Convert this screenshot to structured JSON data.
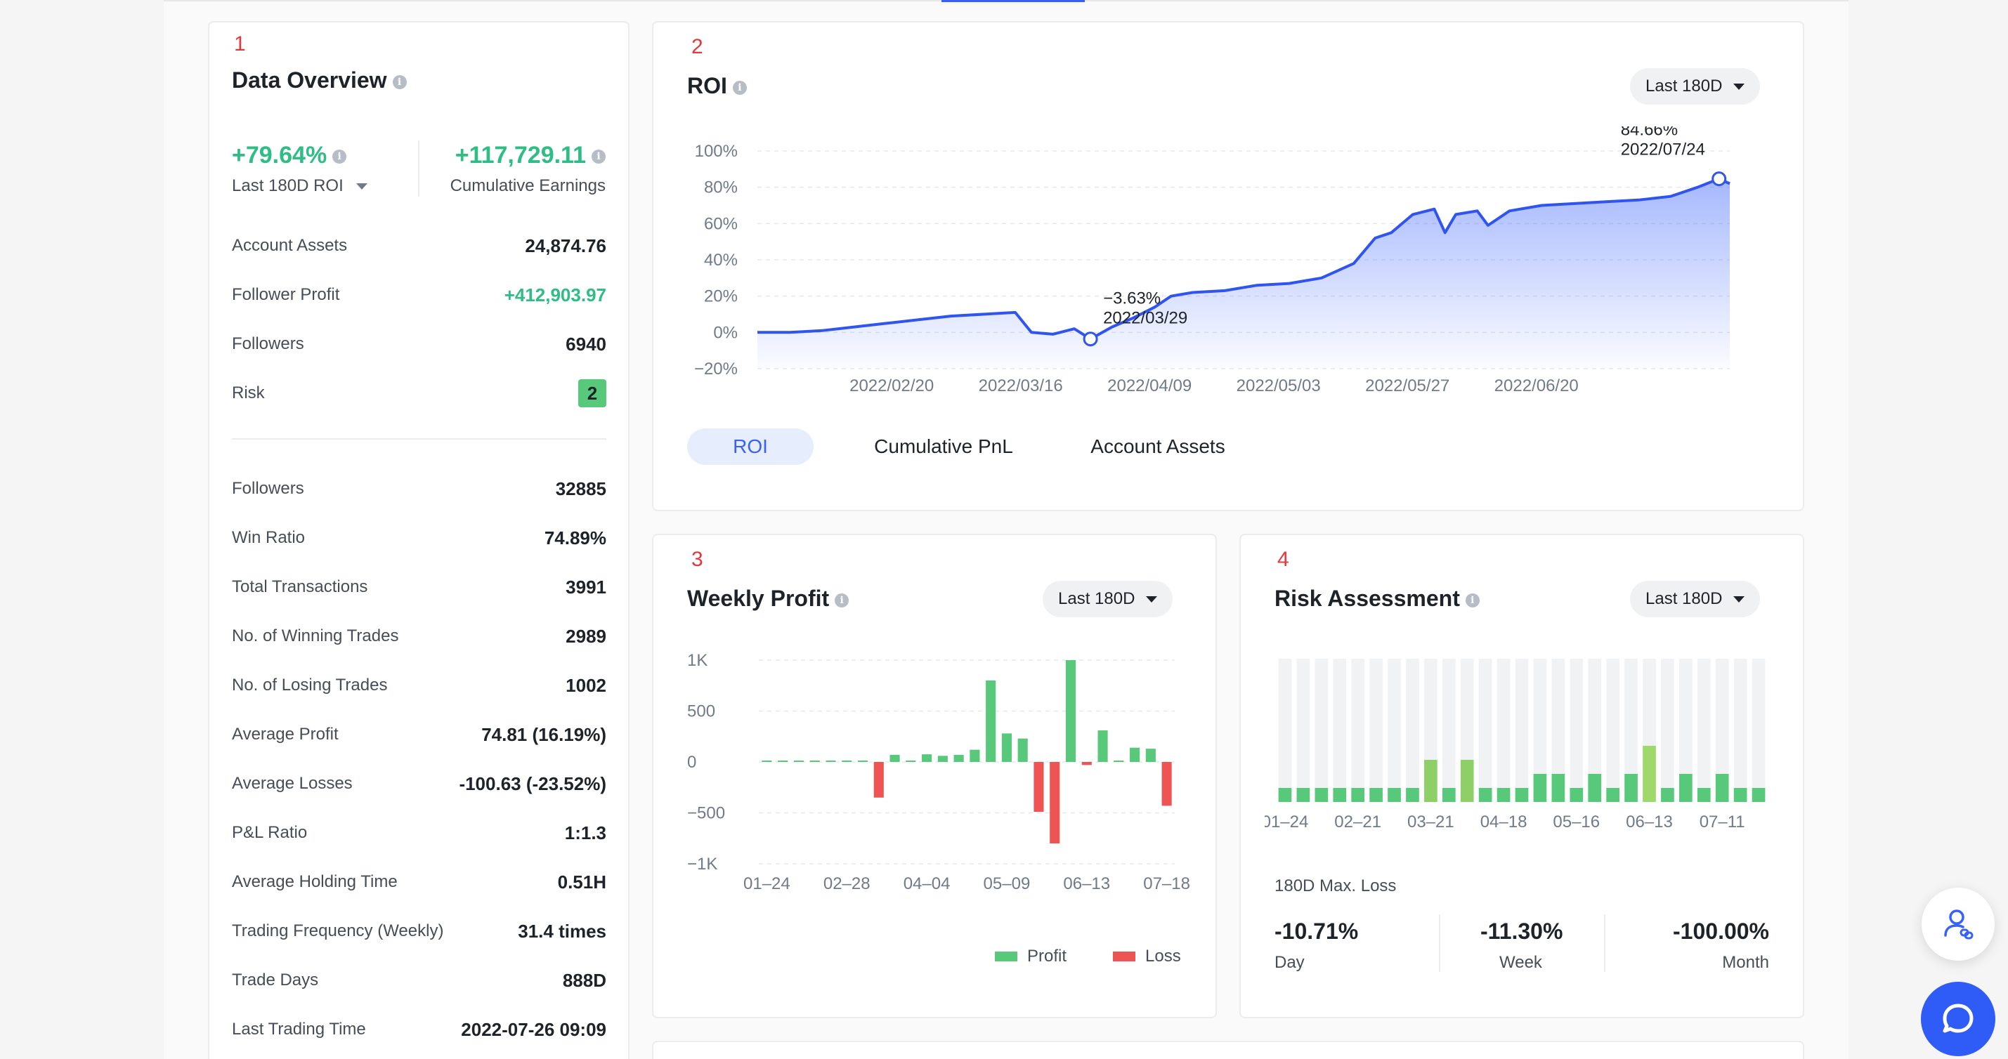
{
  "overview": {
    "number": "1",
    "title": "Data Overview",
    "roi_value": "+79.64%",
    "roi_label": "Last 180D ROI",
    "earnings_value": "+117,729.11",
    "earnings_label": "Cumulative Earnings",
    "top_rows": [
      {
        "label": "Account Assets",
        "value": "24,874.76"
      },
      {
        "label": "Follower Profit",
        "value": "+412,903.97"
      },
      {
        "label": "Followers",
        "value": "6940"
      },
      {
        "label": "Risk",
        "value": "2"
      }
    ],
    "bottom_rows": [
      {
        "label": "Followers",
        "value": "32885"
      },
      {
        "label": "Win Ratio",
        "value": "74.89%"
      },
      {
        "label": "Total Transactions",
        "value": "3991"
      },
      {
        "label": "No. of Winning Trades",
        "value": "2989"
      },
      {
        "label": "No. of Losing Trades",
        "value": "1002"
      },
      {
        "label": "Average Profit",
        "value": "74.81 (16.19%)"
      },
      {
        "label": "Average Losses",
        "value": "-100.63 (-23.52%)"
      },
      {
        "label": "P&L Ratio",
        "value": "1:1.3"
      },
      {
        "label": "Average Holding Time",
        "value": "0.51H"
      },
      {
        "label": "Trading Frequency (Weekly)",
        "value": "31.4 times"
      },
      {
        "label": "Trade Days",
        "value": "888D"
      },
      {
        "label": "Last Trading Time",
        "value": "2022-07-26 09:09"
      }
    ]
  },
  "roi_panel": {
    "number": "2",
    "title": "ROI",
    "range": "Last 180D",
    "tabs": [
      "ROI",
      "Cumulative PnL",
      "Account Assets"
    ],
    "active_tab": "ROI",
    "annotations": [
      {
        "value": "-3.63%",
        "date": "2022/03/29"
      },
      {
        "value": "84.66%",
        "date": "2022/07/24"
      }
    ]
  },
  "weekly_panel": {
    "number": "3",
    "title": "Weekly Profit",
    "range": "Last 180D",
    "legend_profit": "Profit",
    "legend_loss": "Loss"
  },
  "risk_panel": {
    "number": "4",
    "title": "Risk Assessment",
    "range": "Last 180D",
    "max_loss_label": "180D Max. Loss",
    "stats": [
      {
        "value": "-10.71%",
        "label": "Day"
      },
      {
        "value": "-11.30%",
        "label": "Week"
      },
      {
        "value": "-100.00%",
        "label": "Month"
      }
    ]
  },
  "colors": {
    "profit": "#58c97a",
    "loss": "#ee5454",
    "accent": "#3861fb",
    "risk_light": "#9fd86b"
  },
  "icons": {
    "copy_trade_fab": "user-link-icon",
    "chat_fab": "chat-bubble-icon"
  },
  "chart_data": [
    {
      "type": "area",
      "series": [
        {
          "name": "ROI",
          "x": [
            "2022-01-26",
            "2022-02-01",
            "2022-02-07",
            "2022-02-13",
            "2022-02-19",
            "2022-02-25",
            "2022-03-03",
            "2022-03-09",
            "2022-03-15",
            "2022-03-18",
            "2022-03-22",
            "2022-03-26",
            "2022-03-29",
            "2022-04-02",
            "2022-04-06",
            "2022-04-10",
            "2022-04-13",
            "2022-04-17",
            "2022-04-23",
            "2022-04-29",
            "2022-05-05",
            "2022-05-11",
            "2022-05-17",
            "2022-05-21",
            "2022-05-24",
            "2022-05-28",
            "2022-06-01",
            "2022-06-03",
            "2022-06-05",
            "2022-06-09",
            "2022-06-11",
            "2022-06-15",
            "2022-06-21",
            "2022-06-27",
            "2022-07-03",
            "2022-07-09",
            "2022-07-15",
            "2022-07-20",
            "2022-07-24",
            "2022-07-26"
          ],
          "values": [
            0,
            0,
            1,
            3,
            5,
            7,
            9,
            10,
            11,
            0,
            -1,
            2,
            -3.63,
            3,
            8,
            14,
            20,
            22,
            23,
            26,
            27,
            30,
            38,
            52,
            55,
            65,
            68,
            55,
            65,
            67,
            59,
            67,
            70,
            71,
            72,
            73,
            75,
            80,
            84.66,
            82
          ]
        }
      ],
      "ylim": [
        -20,
        100
      ],
      "yticks": [
        "100%",
        "80%",
        "60%",
        "40%",
        "20%",
        "0%",
        "-20%"
      ],
      "xticks": [
        "2022/02/20",
        "2022/03/16",
        "2022/04/09",
        "2022/05/03",
        "2022/05/27",
        "2022/06/20"
      ]
    },
    {
      "type": "bar",
      "categories": [
        "01-24",
        "01-31",
        "02-07",
        "02-14",
        "02-21",
        "02-28",
        "03-07",
        "03-14",
        "03-21",
        "03-28",
        "04-04",
        "04-11",
        "04-18",
        "04-25",
        "05-02",
        "05-09",
        "05-16",
        "05-23",
        "05-30",
        "06-06",
        "06-13",
        "06-20",
        "06-27",
        "07-04",
        "07-11",
        "07-18"
      ],
      "values": [
        10,
        10,
        10,
        5,
        10,
        5,
        5,
        -350,
        70,
        0,
        75,
        60,
        70,
        120,
        800,
        280,
        230,
        -490,
        -800,
        1000,
        -30,
        310,
        10,
        140,
        130,
        -430
      ],
      "ylim": [
        -1000,
        1000
      ],
      "yticks": [
        "1K",
        "500",
        "0",
        "-500",
        "-1K"
      ],
      "xticks": [
        "01-24",
        "02-28",
        "04-04",
        "05-09",
        "06-13",
        "07-18"
      ]
    },
    {
      "type": "bar",
      "categories": [
        "01-24",
        "01-31",
        "02-07",
        "02-14",
        "02-21",
        "02-28",
        "03-07",
        "03-14",
        "03-21",
        "03-28",
        "04-04",
        "04-11",
        "04-18",
        "04-25",
        "05-02",
        "05-09",
        "05-16",
        "05-23",
        "05-30",
        "06-06",
        "06-13",
        "06-20",
        "06-27",
        "07-04",
        "07-11",
        "07-18",
        "07-25"
      ],
      "values": [
        1,
        1,
        1,
        1,
        1,
        1,
        1,
        1,
        3,
        1,
        3,
        1,
        1,
        1,
        2,
        2,
        1,
        2,
        1,
        2,
        4,
        1,
        2,
        1,
        2,
        1,
        1
      ],
      "ylim": [
        0,
        10
      ],
      "xticks": [
        "01-24",
        "02-21",
        "03-21",
        "04-18",
        "05-16",
        "06-13",
        "07-11"
      ]
    }
  ]
}
